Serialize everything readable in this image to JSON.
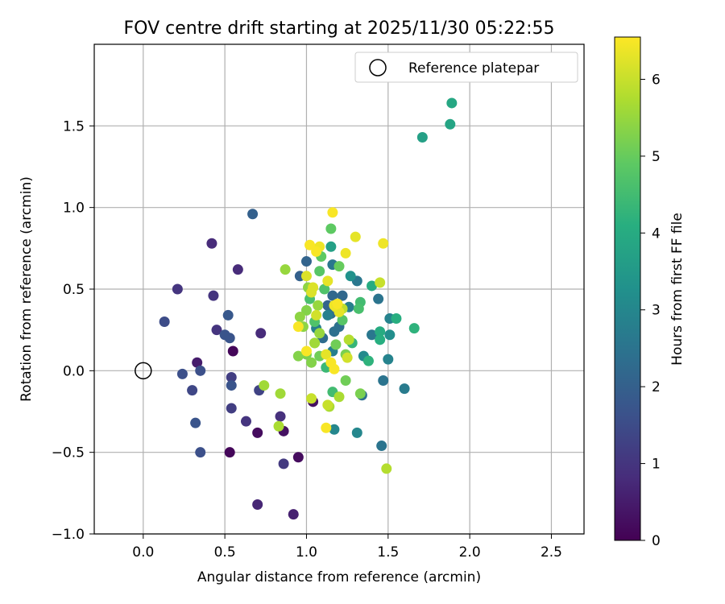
{
  "chart_data": {
    "type": "scatter",
    "title": "FOV centre drift starting at 2025/11/30 05:22:55",
    "xlabel": "Angular distance from reference (arcmin)",
    "ylabel": "Rotation from reference (arcmin)",
    "xlim": [
      -0.3,
      2.7
    ],
    "ylim": [
      -1.0,
      2.0
    ],
    "xticks": [
      0.0,
      0.5,
      1.0,
      1.5,
      2.0,
      2.5
    ],
    "xtick_labels": [
      "0.0",
      "0.5",
      "1.0",
      "1.5",
      "2.0",
      "2.5"
    ],
    "yticks": [
      -1.0,
      -0.5,
      0.0,
      0.5,
      1.0,
      1.5
    ],
    "ytick_labels": [
      "−1.0",
      "−0.5",
      "0.0",
      "0.5",
      "1.0",
      "1.5"
    ],
    "grid": true,
    "legend": {
      "position": "top-right",
      "label": "Reference platepar"
    },
    "reference_point": {
      "x": 0.0,
      "y": 0.0
    },
    "colorbar": {
      "label": "Hours from first FF file",
      "range": [
        0,
        6.55
      ],
      "ticks": [
        0,
        1,
        2,
        3,
        4,
        5,
        6
      ],
      "tick_labels": [
        "0",
        "1",
        "2",
        "3",
        "4",
        "5",
        "6"
      ],
      "colormap": "viridis"
    },
    "points": [
      {
        "x": 0.55,
        "y": 0.12,
        "h": 0.1
      },
      {
        "x": 0.53,
        "y": -0.5,
        "h": 0.1
      },
      {
        "x": 0.7,
        "y": -0.38,
        "h": 0.2
      },
      {
        "x": 0.95,
        "y": -0.53,
        "h": 0.2
      },
      {
        "x": 0.86,
        "y": -0.37,
        "h": 0.3
      },
      {
        "x": 1.04,
        "y": -0.19,
        "h": 0.3
      },
      {
        "x": 0.33,
        "y": 0.05,
        "h": 0.5
      },
      {
        "x": 0.92,
        "y": -0.88,
        "h": 0.6
      },
      {
        "x": 0.7,
        "y": -0.82,
        "h": 0.7
      },
      {
        "x": 0.42,
        "y": 0.78,
        "h": 0.8
      },
      {
        "x": 0.58,
        "y": 0.62,
        "h": 0.8
      },
      {
        "x": 0.72,
        "y": 0.23,
        "h": 0.8
      },
      {
        "x": 0.84,
        "y": -0.28,
        "h": 0.9
      },
      {
        "x": 0.21,
        "y": 0.5,
        "h": 1.0
      },
      {
        "x": 0.43,
        "y": 0.46,
        "h": 1.0
      },
      {
        "x": 0.45,
        "y": 0.25,
        "h": 1.0
      },
      {
        "x": 0.63,
        "y": -0.31,
        "h": 1.0
      },
      {
        "x": 0.86,
        "y": -0.57,
        "h": 1.1
      },
      {
        "x": 0.54,
        "y": -0.04,
        "h": 1.2
      },
      {
        "x": 0.54,
        "y": -0.23,
        "h": 1.2
      },
      {
        "x": 0.71,
        "y": -0.12,
        "h": 1.3
      },
      {
        "x": 0.3,
        "y": -0.12,
        "h": 1.4
      },
      {
        "x": 0.13,
        "y": 0.3,
        "h": 1.5
      },
      {
        "x": 0.24,
        "y": -0.02,
        "h": 1.6
      },
      {
        "x": 0.35,
        "y": 0.0,
        "h": 1.6
      },
      {
        "x": 0.35,
        "y": -0.5,
        "h": 1.6
      },
      {
        "x": 0.32,
        "y": -0.32,
        "h": 1.7
      },
      {
        "x": 0.5,
        "y": 0.22,
        "h": 1.7
      },
      {
        "x": 0.53,
        "y": 0.2,
        "h": 1.7
      },
      {
        "x": 0.54,
        "y": -0.09,
        "h": 1.7
      },
      {
        "x": 0.52,
        "y": 0.34,
        "h": 1.8
      },
      {
        "x": 0.67,
        "y": 0.96,
        "h": 2.0
      },
      {
        "x": 0.96,
        "y": 0.58,
        "h": 2.0
      },
      {
        "x": 1.0,
        "y": 0.67,
        "h": 2.1
      },
      {
        "x": 1.13,
        "y": 0.4,
        "h": 2.1
      },
      {
        "x": 1.16,
        "y": 0.46,
        "h": 2.2
      },
      {
        "x": 1.22,
        "y": 0.46,
        "h": 2.2
      },
      {
        "x": 1.15,
        "y": 0.35,
        "h": 2.3
      },
      {
        "x": 1.1,
        "y": 0.2,
        "h": 2.3
      },
      {
        "x": 1.2,
        "y": 0.27,
        "h": 2.4
      },
      {
        "x": 1.17,
        "y": 0.24,
        "h": 2.4
      },
      {
        "x": 1.34,
        "y": -0.15,
        "h": 2.4
      },
      {
        "x": 1.44,
        "y": 0.44,
        "h": 2.5
      },
      {
        "x": 1.46,
        "y": -0.46,
        "h": 2.5
      },
      {
        "x": 1.47,
        "y": -0.06,
        "h": 2.5
      },
      {
        "x": 1.16,
        "y": 0.65,
        "h": 2.6
      },
      {
        "x": 1.31,
        "y": 0.55,
        "h": 2.6
      },
      {
        "x": 1.4,
        "y": 0.22,
        "h": 2.6
      },
      {
        "x": 1.6,
        "y": -0.11,
        "h": 2.7
      },
      {
        "x": 1.06,
        "y": 0.26,
        "h": 2.8
      },
      {
        "x": 1.13,
        "y": 0.34,
        "h": 2.8
      },
      {
        "x": 1.26,
        "y": 0.39,
        "h": 2.8
      },
      {
        "x": 1.16,
        "y": 0.12,
        "h": 2.8
      },
      {
        "x": 1.51,
        "y": 0.32,
        "h": 2.9
      },
      {
        "x": 1.5,
        "y": 0.07,
        "h": 2.9
      },
      {
        "x": 1.17,
        "y": -0.36,
        "h": 3.0
      },
      {
        "x": 1.31,
        "y": -0.38,
        "h": 3.0
      },
      {
        "x": 1.35,
        "y": 0.09,
        "h": 3.1
      },
      {
        "x": 1.51,
        "y": 0.22,
        "h": 3.2
      },
      {
        "x": 1.27,
        "y": 0.58,
        "h": 3.3
      },
      {
        "x": 1.71,
        "y": 1.43,
        "h": 3.7
      },
      {
        "x": 1.88,
        "y": 1.51,
        "h": 3.8
      },
      {
        "x": 1.89,
        "y": 1.64,
        "h": 3.9
      },
      {
        "x": 1.15,
        "y": 0.76,
        "h": 3.7
      },
      {
        "x": 1.4,
        "y": 0.52,
        "h": 4.0
      },
      {
        "x": 1.45,
        "y": 0.24,
        "h": 4.0
      },
      {
        "x": 1.45,
        "y": 0.19,
        "h": 4.1
      },
      {
        "x": 1.55,
        "y": 0.32,
        "h": 4.1
      },
      {
        "x": 1.66,
        "y": 0.26,
        "h": 4.2
      },
      {
        "x": 1.38,
        "y": 0.06,
        "h": 4.2
      },
      {
        "x": 1.28,
        "y": 0.17,
        "h": 4.3
      },
      {
        "x": 1.12,
        "y": 0.02,
        "h": 4.4
      },
      {
        "x": 1.16,
        "y": -0.13,
        "h": 4.5
      },
      {
        "x": 1.33,
        "y": 0.42,
        "h": 4.5
      },
      {
        "x": 1.32,
        "y": 0.38,
        "h": 4.6
      },
      {
        "x": 1.02,
        "y": 0.44,
        "h": 4.6
      },
      {
        "x": 1.05,
        "y": 0.3,
        "h": 4.7
      },
      {
        "x": 1.11,
        "y": 0.5,
        "h": 4.7
      },
      {
        "x": 1.22,
        "y": 0.31,
        "h": 4.8
      },
      {
        "x": 1.08,
        "y": 0.61,
        "h": 4.8
      },
      {
        "x": 1.15,
        "y": 0.87,
        "h": 4.9
      },
      {
        "x": 1.09,
        "y": 0.7,
        "h": 4.9
      },
      {
        "x": 1.2,
        "y": 0.64,
        "h": 5.0
      },
      {
        "x": 1.05,
        "y": 0.17,
        "h": 5.0
      },
      {
        "x": 1.08,
        "y": 0.09,
        "h": 5.1
      },
      {
        "x": 1.18,
        "y": 0.16,
        "h": 5.1
      },
      {
        "x": 1.24,
        "y": -0.06,
        "h": 5.1
      },
      {
        "x": 1.33,
        "y": -0.14,
        "h": 5.2
      },
      {
        "x": 1.24,
        "y": 0.1,
        "h": 5.2
      },
      {
        "x": 1.0,
        "y": 0.1,
        "h": 5.2
      },
      {
        "x": 1.03,
        "y": 0.05,
        "h": 5.3
      },
      {
        "x": 0.95,
        "y": 0.09,
        "h": 5.3
      },
      {
        "x": 1.0,
        "y": 0.37,
        "h": 5.3
      },
      {
        "x": 0.96,
        "y": 0.33,
        "h": 5.4
      },
      {
        "x": 0.98,
        "y": 0.27,
        "h": 5.4
      },
      {
        "x": 1.01,
        "y": 0.51,
        "h": 5.4
      },
      {
        "x": 1.07,
        "y": 0.4,
        "h": 5.5
      },
      {
        "x": 0.87,
        "y": 0.62,
        "h": 5.5
      },
      {
        "x": 1.08,
        "y": 0.23,
        "h": 5.5
      },
      {
        "x": 1.05,
        "y": 0.17,
        "h": 5.6
      },
      {
        "x": 0.74,
        "y": -0.09,
        "h": 5.6
      },
      {
        "x": 0.84,
        "y": -0.14,
        "h": 5.6
      },
      {
        "x": 0.83,
        "y": -0.34,
        "h": 5.7
      },
      {
        "x": 1.14,
        "y": -0.22,
        "h": 5.7
      },
      {
        "x": 1.2,
        "y": -0.16,
        "h": 5.7
      },
      {
        "x": 1.26,
        "y": 0.19,
        "h": 5.8
      },
      {
        "x": 1.49,
        "y": -0.6,
        "h": 5.8
      },
      {
        "x": 1.22,
        "y": 0.38,
        "h": 5.9
      },
      {
        "x": 1.13,
        "y": -0.21,
        "h": 6.0
      },
      {
        "x": 1.03,
        "y": -0.17,
        "h": 6.0
      },
      {
        "x": 1.45,
        "y": 0.54,
        "h": 6.0
      },
      {
        "x": 1.18,
        "y": 0.39,
        "h": 6.1
      },
      {
        "x": 1.25,
        "y": 0.08,
        "h": 6.1
      },
      {
        "x": 1.06,
        "y": 0.34,
        "h": 6.1
      },
      {
        "x": 1.0,
        "y": 0.58,
        "h": 6.2
      },
      {
        "x": 1.03,
        "y": 0.48,
        "h": 6.2
      },
      {
        "x": 1.04,
        "y": 0.51,
        "h": 6.2
      },
      {
        "x": 1.12,
        "y": 0.1,
        "h": 6.3
      },
      {
        "x": 1.13,
        "y": 0.55,
        "h": 6.3
      },
      {
        "x": 1.2,
        "y": 0.36,
        "h": 6.3
      },
      {
        "x": 1.3,
        "y": 0.82,
        "h": 6.3
      },
      {
        "x": 1.47,
        "y": 0.78,
        "h": 6.4
      },
      {
        "x": 1.24,
        "y": 0.72,
        "h": 6.4
      },
      {
        "x": 1.17,
        "y": 0.4,
        "h": 6.4
      },
      {
        "x": 1.08,
        "y": 0.76,
        "h": 6.4
      },
      {
        "x": 1.02,
        "y": 0.77,
        "h": 6.5
      },
      {
        "x": 1.06,
        "y": 0.73,
        "h": 6.5
      },
      {
        "x": 1.16,
        "y": 0.97,
        "h": 6.5
      },
      {
        "x": 1.19,
        "y": 0.41,
        "h": 6.5
      },
      {
        "x": 1.15,
        "y": 0.05,
        "h": 6.5
      },
      {
        "x": 1.17,
        "y": 0.01,
        "h": 6.5
      },
      {
        "x": 1.12,
        "y": -0.35,
        "h": 6.5
      },
      {
        "x": 0.95,
        "y": 0.27,
        "h": 6.5
      },
      {
        "x": 1.0,
        "y": 0.12,
        "h": 6.5
      }
    ]
  }
}
